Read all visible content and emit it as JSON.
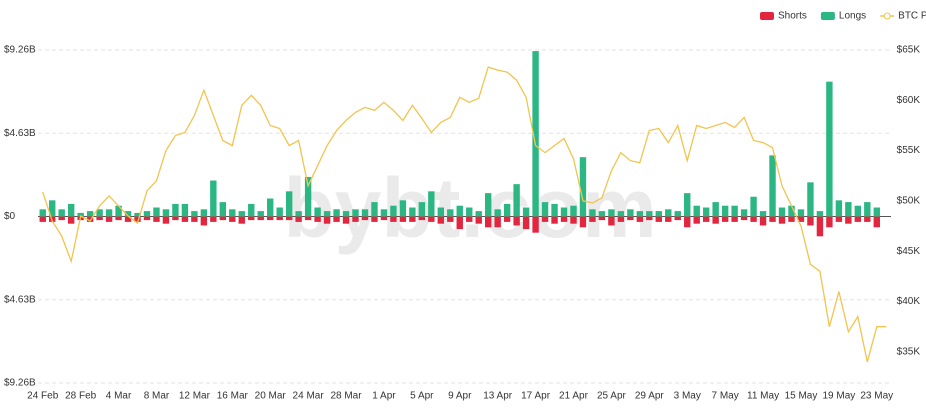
{
  "chart_data": {
    "type": "bar-line",
    "watermark": "bybt.com",
    "categories": [
      "24 Feb",
      null,
      null,
      null,
      "28 Feb",
      null,
      null,
      null,
      "4 Mar",
      null,
      null,
      null,
      "8 Mar",
      null,
      null,
      null,
      "12 Mar",
      null,
      null,
      null,
      "16 Mar",
      null,
      null,
      null,
      "20 Mar",
      null,
      null,
      null,
      "24 Mar",
      null,
      null,
      null,
      "28 Mar",
      null,
      null,
      null,
      "1 Apr",
      null,
      null,
      null,
      "5 Apr",
      null,
      null,
      null,
      "9 Apr",
      null,
      null,
      null,
      "13 Apr",
      null,
      null,
      null,
      "17 Apr",
      null,
      null,
      null,
      "21 Apr",
      null,
      null,
      null,
      "25 Apr",
      null,
      null,
      null,
      "29 Apr",
      null,
      null,
      null,
      "3 May",
      null,
      null,
      null,
      "7 May",
      null,
      null,
      null,
      "11 May",
      null,
      null,
      null,
      "15 May",
      null,
      null,
      null,
      "19 May",
      null,
      null,
      null,
      "23 May",
      null
    ],
    "series": [
      {
        "name": "Shorts",
        "color": "#e3263f",
        "values": [
          -0.3,
          -0.3,
          -0.2,
          -0.4,
          -0.2,
          -0.3,
          -0.2,
          -0.3,
          -0.2,
          -0.3,
          -0.3,
          -0.2,
          -0.3,
          -0.4,
          -0.2,
          -0.3,
          -0.3,
          -0.5,
          -0.3,
          -0.2,
          -0.3,
          -0.4,
          -0.2,
          -0.2,
          -0.2,
          -0.2,
          -0.2,
          -0.3,
          -0.2,
          -0.3,
          -0.4,
          -0.3,
          -0.4,
          -0.3,
          -0.2,
          -0.3,
          -0.2,
          -0.3,
          -0.3,
          -0.3,
          -0.2,
          -0.3,
          -0.4,
          -0.3,
          -0.7,
          -0.3,
          -0.4,
          -0.6,
          -0.6,
          -0.3,
          -0.5,
          -0.7,
          -0.9,
          -0.3,
          -0.4,
          -0.3,
          -0.4,
          -0.6,
          -0.3,
          -0.2,
          -0.5,
          -0.3,
          -0.2,
          -0.3,
          -0.2,
          -0.3,
          -0.3,
          -0.2,
          -0.6,
          -0.4,
          -0.3,
          -0.4,
          -0.3,
          -0.3,
          -0.2,
          -0.3,
          -0.5,
          -0.3,
          -0.4,
          -0.3,
          -0.3,
          -0.5,
          -1.1,
          -0.6,
          -0.3,
          -0.4,
          -0.3,
          -0.3,
          -0.6,
          null
        ]
      },
      {
        "name": "Longs",
        "color": "#2bb784",
        "values": [
          0.4,
          0.9,
          0.4,
          0.7,
          0.2,
          0.3,
          0.4,
          0.4,
          0.6,
          0.3,
          0.2,
          0.3,
          0.5,
          0.4,
          0.7,
          0.7,
          0.3,
          0.4,
          2.0,
          0.8,
          0.4,
          0.3,
          0.7,
          0.3,
          1.0,
          0.5,
          1.4,
          0.3,
          2.2,
          0.5,
          0.3,
          0.4,
          0.3,
          0.4,
          0.4,
          0.8,
          0.4,
          0.6,
          0.9,
          0.5,
          0.8,
          1.4,
          0.5,
          0.4,
          0.6,
          0.5,
          0.3,
          1.3,
          0.4,
          0.7,
          1.8,
          0.5,
          9.2,
          0.8,
          0.7,
          0.5,
          0.6,
          3.3,
          0.4,
          0.3,
          0.4,
          0.3,
          0.4,
          0.3,
          0.3,
          0.3,
          0.4,
          0.3,
          1.3,
          0.6,
          0.5,
          0.8,
          0.6,
          0.6,
          0.4,
          1.1,
          0.3,
          3.4,
          0.5,
          0.6,
          0.4,
          1.9,
          0.3,
          7.5,
          0.9,
          0.8,
          0.6,
          0.8,
          0.5,
          null
        ]
      },
      {
        "name": "BTC Price",
        "color": "#f2c44f",
        "axis": "y2",
        "values": [
          50.9,
          48.0,
          46.5,
          44.0,
          48.5,
          48.0,
          49.5,
          50.5,
          49.5,
          48.5,
          47.8,
          51.0,
          52.0,
          55.0,
          56.5,
          56.8,
          58.5,
          61.0,
          58.5,
          56.0,
          55.5,
          59.5,
          60.5,
          59.5,
          57.5,
          57.2,
          55.5,
          56.0,
          51.5,
          53.5,
          55.5,
          57.0,
          58.0,
          58.8,
          59.3,
          59.0,
          59.8,
          59.0,
          58.0,
          59.5,
          58.2,
          56.8,
          57.8,
          58.3,
          60.3,
          59.8,
          60.2,
          63.3,
          63.0,
          62.8,
          62.0,
          60.3,
          55.5,
          54.8,
          55.5,
          56.2,
          54.2,
          50.0,
          49.8,
          50.3,
          53.0,
          54.8,
          54.0,
          53.8,
          57.0,
          57.2,
          55.8,
          57.5,
          54.0,
          57.5,
          57.2,
          57.5,
          57.8,
          57.3,
          58.3,
          56.0,
          55.8,
          55.3,
          51.5,
          49.5,
          47.5,
          43.7,
          43.0,
          37.5,
          41.0,
          37.0,
          38.5,
          34.0,
          37.5,
          37.5
        ]
      }
    ],
    "ylim": [
      -9.26,
      9.26
    ],
    "yticks": [
      {
        "value": -9.26,
        "label": "$9.26B"
      },
      {
        "value": -4.63,
        "label": "$4.63B"
      },
      {
        "value": 0,
        "label": "$0"
      },
      {
        "value": 4.63,
        "label": "$4.63B"
      },
      {
        "value": 9.26,
        "label": "$9.26B"
      }
    ],
    "y2lim": [
      31.9,
      65
    ],
    "y2ticks": [
      {
        "value": 35,
        "label": "$35K"
      },
      {
        "value": 40,
        "label": "$40K"
      },
      {
        "value": 45,
        "label": "$45K"
      },
      {
        "value": 50,
        "label": "$50K"
      },
      {
        "value": 55,
        "label": "$55K"
      },
      {
        "value": 60,
        "label": "$60K"
      },
      {
        "value": 65,
        "label": "$65K"
      }
    ],
    "grid": true,
    "legend": "top-right"
  }
}
